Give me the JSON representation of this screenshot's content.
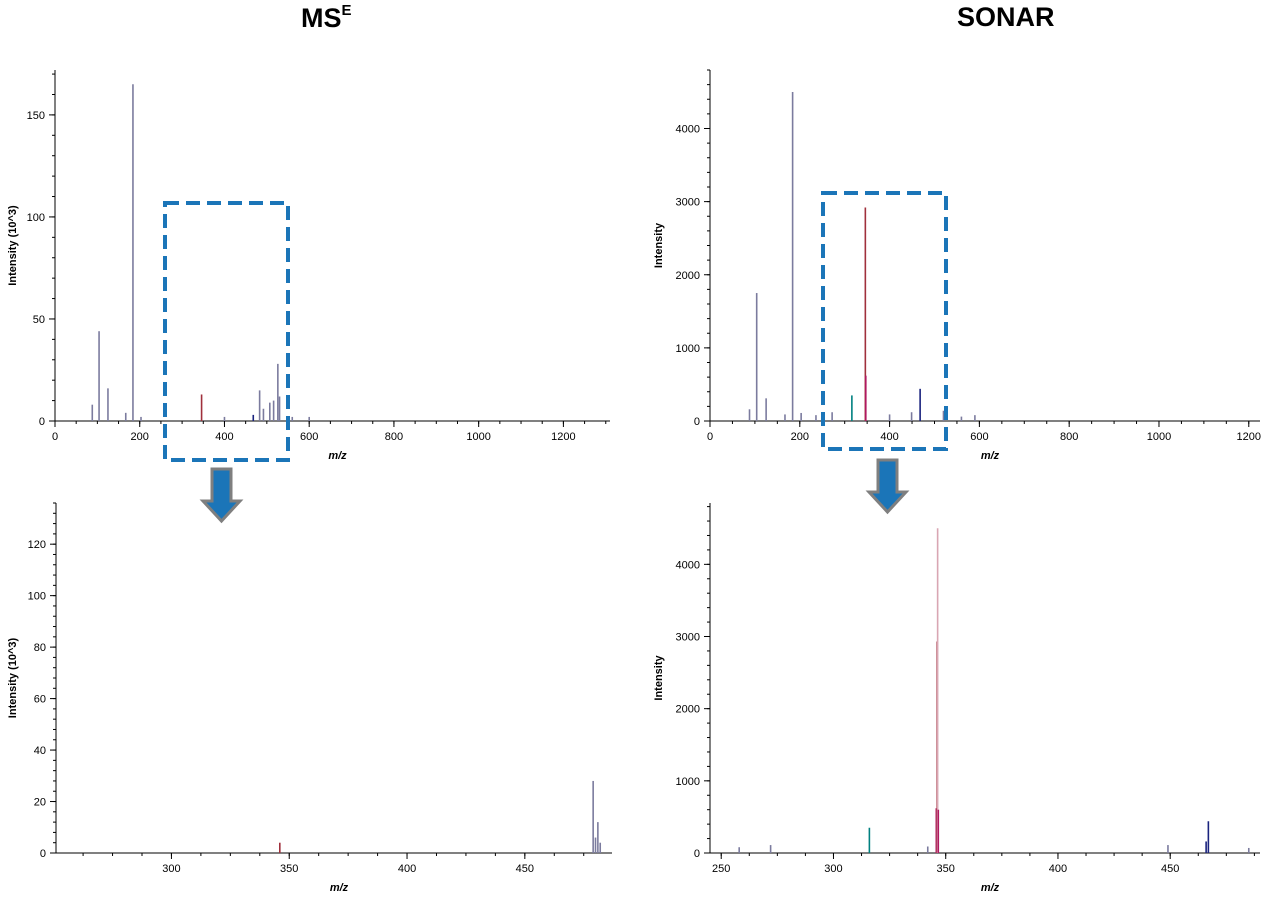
{
  "titles": {
    "left_main": "MS",
    "left_sup": "E",
    "right": "SONAR"
  },
  "colors": {
    "dashed_box": "#1b75b8",
    "arrow_fill": "#1b75b8",
    "arrow_border": "#7f7f7f"
  },
  "chart_data": [
    {
      "id": "mse-full",
      "type": "bar",
      "xlabel": "m/z",
      "ylabel": "Intensity (10^3)",
      "xlim": [
        0,
        1310
      ],
      "ylim": [
        0,
        172
      ],
      "xticks": [
        0,
        200,
        400,
        600,
        800,
        1000,
        1200
      ],
      "yticks": [
        0,
        50,
        100,
        150
      ],
      "xtick_labels": [
        "0",
        "200",
        "400",
        "600",
        "800",
        "1000",
        "1200"
      ],
      "ytick_labels": [
        "0",
        "50",
        "100",
        "150"
      ],
      "peaks": [
        {
          "x": 88,
          "y": 8,
          "color": "#7b7b9e"
        },
        {
          "x": 104,
          "y": 44,
          "color": "#7b7b9e"
        },
        {
          "x": 125,
          "y": 16,
          "color": "#7b7b9e"
        },
        {
          "x": 167,
          "y": 4,
          "color": "#7b7b9e"
        },
        {
          "x": 184,
          "y": 165,
          "color": "#7b7b9e"
        },
        {
          "x": 203,
          "y": 2,
          "color": "#7b7b9e"
        },
        {
          "x": 346,
          "y": 13,
          "color": "#a0303c"
        },
        {
          "x": 400,
          "y": 2,
          "color": "#7b7b9e"
        },
        {
          "x": 468,
          "y": 3,
          "color": "#1a237e"
        },
        {
          "x": 483,
          "y": 15,
          "color": "#7b7b9e"
        },
        {
          "x": 492,
          "y": 6,
          "color": "#7b7b9e"
        },
        {
          "x": 507,
          "y": 9,
          "color": "#7b7b9e"
        },
        {
          "x": 516,
          "y": 10,
          "color": "#7b7b9e"
        },
        {
          "x": 526,
          "y": 28,
          "color": "#7b7b9e"
        },
        {
          "x": 530,
          "y": 12,
          "color": "#7b7b9e"
        },
        {
          "x": 560,
          "y": 2,
          "color": "#7b7b9e"
        },
        {
          "x": 600,
          "y": 2,
          "color": "#7b7b9e"
        }
      ]
    },
    {
      "id": "sonar-full",
      "type": "bar",
      "xlabel": "m/z",
      "ylabel": "Intensity",
      "xlim": [
        0,
        1225
      ],
      "ylim": [
        0,
        4800
      ],
      "xticks": [
        0,
        200,
        400,
        600,
        800,
        1000,
        1200
      ],
      "yticks": [
        0,
        1000,
        2000,
        3000,
        4000
      ],
      "xtick_labels": [
        "0",
        "200",
        "400",
        "600",
        "800",
        "1000",
        "1200"
      ],
      "ytick_labels": [
        "0",
        "1000",
        "2000",
        "3000",
        "4000"
      ],
      "peaks": [
        {
          "x": 88,
          "y": 160,
          "color": "#7b7b9e"
        },
        {
          "x": 104,
          "y": 1750,
          "color": "#7b7b9e"
        },
        {
          "x": 125,
          "y": 310,
          "color": "#7b7b9e"
        },
        {
          "x": 167,
          "y": 90,
          "color": "#7b7b9e"
        },
        {
          "x": 184,
          "y": 4500,
          "color": "#7b7b9e"
        },
        {
          "x": 203,
          "y": 110,
          "color": "#7b7b9e"
        },
        {
          "x": 236,
          "y": 80,
          "color": "#7b7b9e"
        },
        {
          "x": 272,
          "y": 120,
          "color": "#7b7b9e"
        },
        {
          "x": 316,
          "y": 350,
          "color": "#008080"
        },
        {
          "x": 346,
          "y": 2920,
          "color": "#a0303c"
        },
        {
          "x": 347,
          "y": 620,
          "color": "#b01860"
        },
        {
          "x": 400,
          "y": 90,
          "color": "#7b7b9e"
        },
        {
          "x": 449,
          "y": 120,
          "color": "#7b7b9e"
        },
        {
          "x": 468,
          "y": 440,
          "color": "#1a237e"
        },
        {
          "x": 520,
          "y": 140,
          "color": "#7b7b9e"
        },
        {
          "x": 560,
          "y": 60,
          "color": "#7b7b9e"
        },
        {
          "x": 590,
          "y": 80,
          "color": "#7b7b9e"
        }
      ]
    },
    {
      "id": "mse-zoom",
      "type": "bar",
      "xlabel": "m/z",
      "ylabel": "Intensity (10^3)",
      "xlim": [
        251,
        487
      ],
      "ylim": [
        0,
        136
      ],
      "xticks": [
        300,
        350,
        400,
        450
      ],
      "yticks": [
        0,
        20,
        40,
        60,
        80,
        100,
        120
      ],
      "xtick_labels": [
        "300",
        "350",
        "400",
        "450"
      ],
      "ytick_labels": [
        "0",
        "20",
        "40",
        "60",
        "80",
        "100",
        "120"
      ],
      "peaks": [
        {
          "x": 346,
          "y": 4,
          "color": "#a0303c"
        },
        {
          "x": 479,
          "y": 28,
          "color": "#7b7b9e"
        },
        {
          "x": 480,
          "y": 6,
          "color": "#7b7b9e"
        },
        {
          "x": 481,
          "y": 12,
          "color": "#7b7b9e"
        },
        {
          "x": 482,
          "y": 4,
          "color": "#7b7b9e"
        }
      ]
    },
    {
      "id": "sonar-zoom",
      "type": "bar",
      "xlabel": "m/z",
      "ylabel": "Intensity",
      "xlim": [
        245,
        490
      ],
      "ylim": [
        0,
        4850
      ],
      "xticks": [
        250,
        300,
        350,
        400,
        450
      ],
      "yticks": [
        0,
        1000,
        2000,
        3000,
        4000
      ],
      "xtick_labels": [
        "250",
        "300",
        "350",
        "400",
        "450"
      ],
      "ytick_labels": [
        "0",
        "1000",
        "2000",
        "3000",
        "4000"
      ],
      "peaks": [
        {
          "x": 258,
          "y": 80,
          "color": "#7b7b9e"
        },
        {
          "x": 272,
          "y": 110,
          "color": "#7b7b9e"
        },
        {
          "x": 316,
          "y": 350,
          "color": "#008080"
        },
        {
          "x": 342,
          "y": 90,
          "color": "#7b7b9e"
        },
        {
          "x": 345.8,
          "y": 620,
          "color": "#b01860"
        },
        {
          "x": 346.2,
          "y": 2930,
          "color": "#a0303c"
        },
        {
          "x": 346.4,
          "y": 4500,
          "color": "#d9a6b3"
        },
        {
          "x": 346.7,
          "y": 600,
          "color": "#b01860"
        },
        {
          "x": 449,
          "y": 110,
          "color": "#7b7b9e"
        },
        {
          "x": 466,
          "y": 160,
          "color": "#1a237e"
        },
        {
          "x": 467,
          "y": 440,
          "color": "#1a237e"
        },
        {
          "x": 485,
          "y": 70,
          "color": "#7b7b9e"
        }
      ]
    }
  ]
}
